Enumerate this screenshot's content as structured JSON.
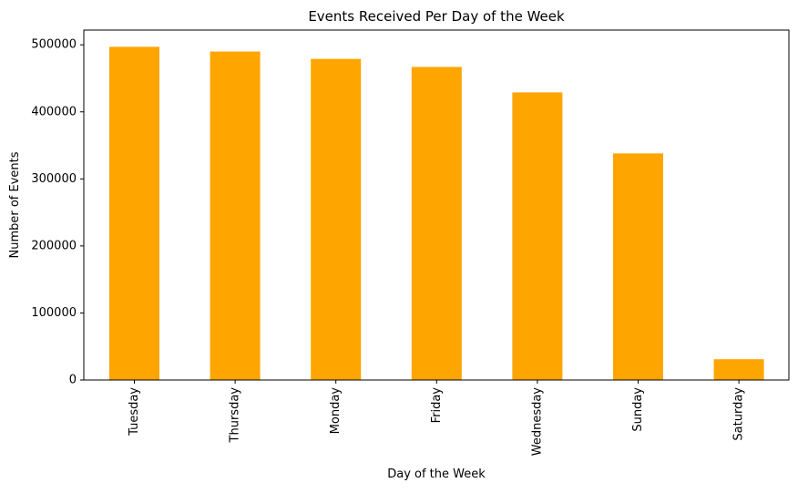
{
  "chart_data": {
    "type": "bar",
    "title": "Events Received Per Day of the Week",
    "xlabel": "Day of the Week",
    "ylabel": "Number of Events",
    "categories": [
      "Tuesday",
      "Thursday",
      "Monday",
      "Friday",
      "Wednesday",
      "Sunday",
      "Saturday"
    ],
    "values": [
      497000,
      490000,
      479000,
      467000,
      429000,
      338000,
      31000
    ],
    "ylim": [
      0,
      522000
    ],
    "yticks": [
      0,
      100000,
      200000,
      300000,
      400000,
      500000
    ],
    "ytick_labels": [
      "0",
      "100000",
      "200000",
      "300000",
      "400000",
      "500000"
    ],
    "bar_color": "#ffa500",
    "grid": false,
    "legend": "none"
  }
}
